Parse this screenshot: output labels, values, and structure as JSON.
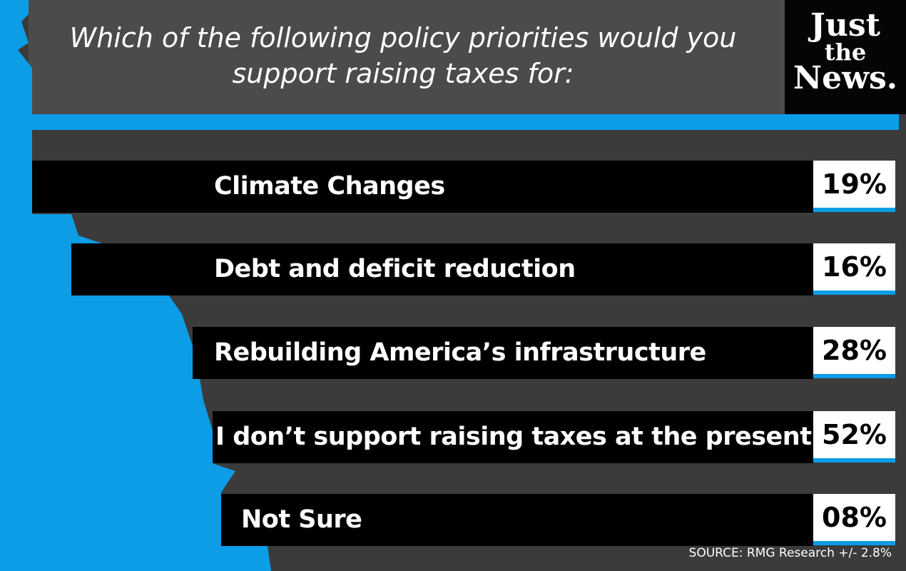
{
  "title": "Which of the following policy priorities would you support raising taxes for:",
  "logo": [
    "Just",
    "the",
    "News."
  ],
  "rows": [
    {
      "label": "Climate Changes",
      "value": "19%"
    },
    {
      "label": "Debt and deficit reduction",
      "value": "16%"
    },
    {
      "label": "Rebuilding America’s infrastructure",
      "value": "28%"
    },
    {
      "label": "I don’t support raising taxes at the present time",
      "value": "52%"
    },
    {
      "label": "Not Sure",
      "value": "08%"
    }
  ],
  "source": "SOURCE: RMG Research +/- 2.8%"
}
